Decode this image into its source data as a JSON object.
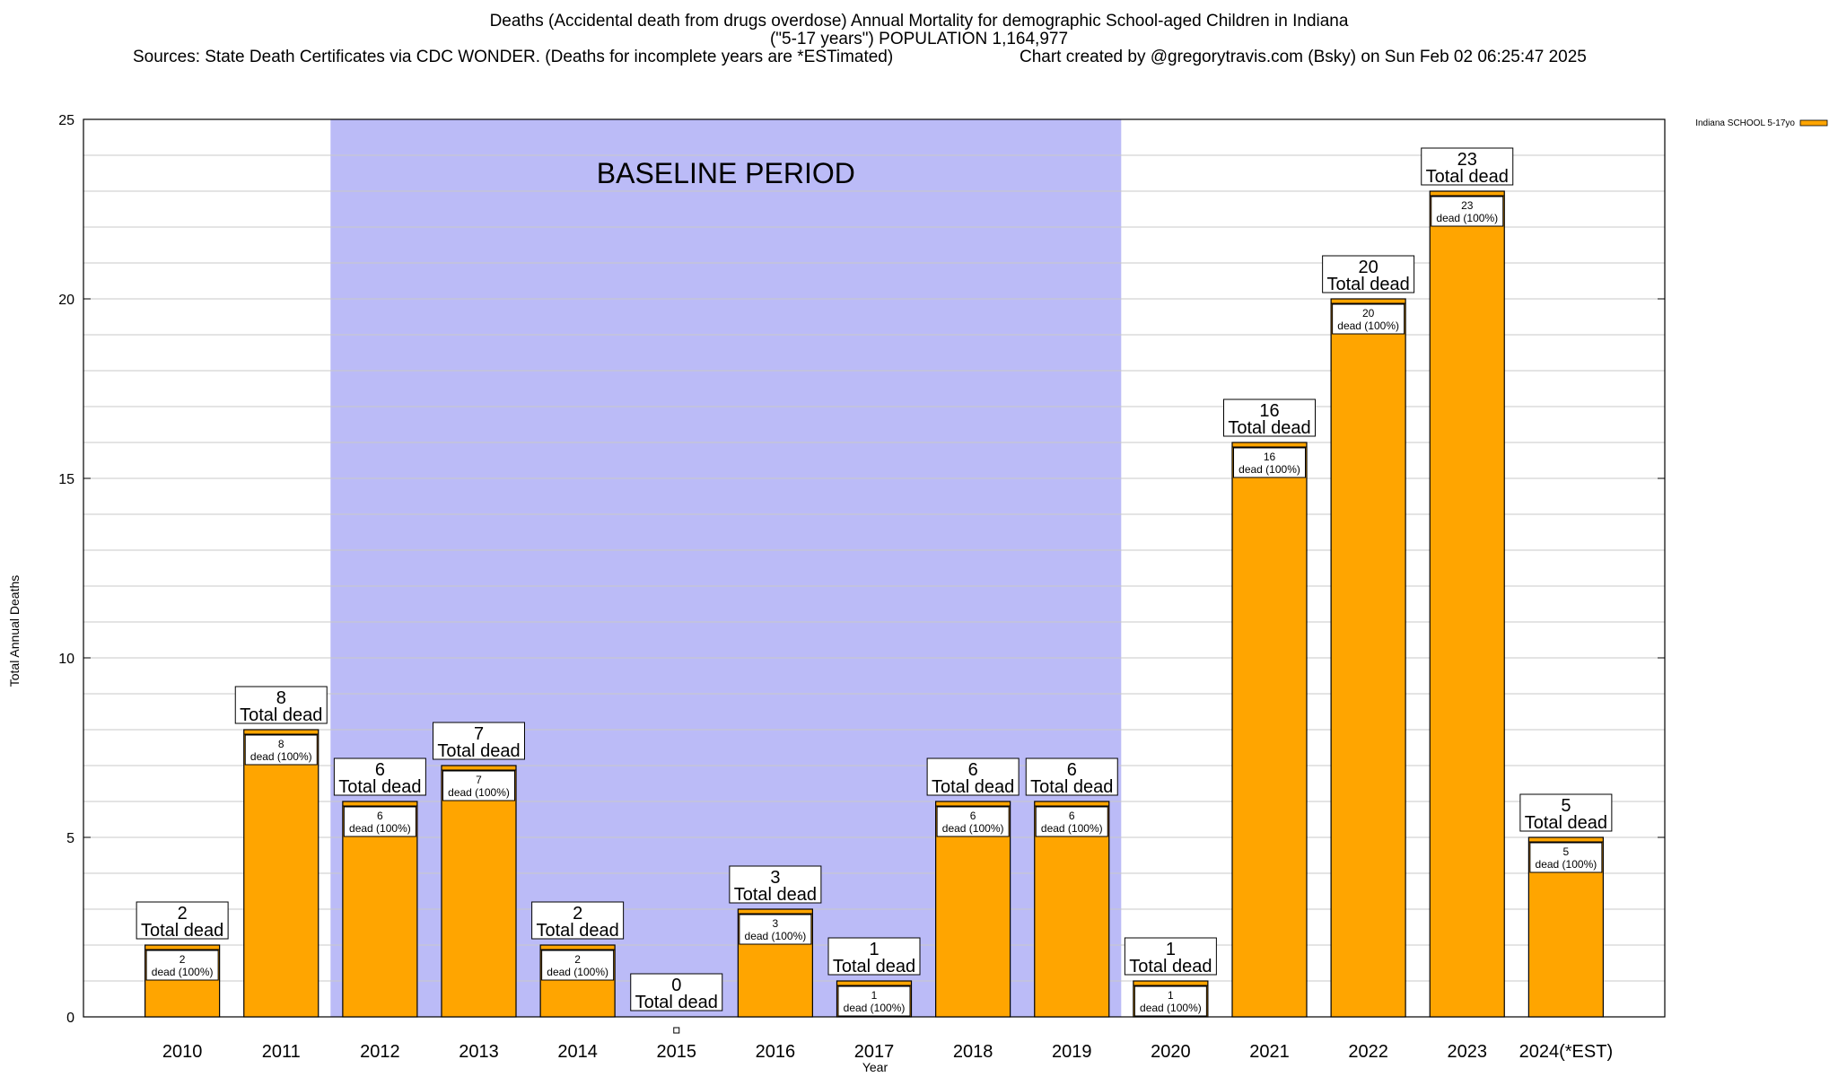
{
  "header": {
    "title_line1": "Deaths (Accidental death from drugs overdose) Annual Mortality for demographic School-aged Children in Indiana",
    "title_line2": "(\"5-17 years\") POPULATION 1,164,977",
    "sources": "Sources: State Death Certificates via CDC WONDER. (Deaths for incomplete years are *ESTimated)",
    "credit": "Chart created by @gregorytravis.com (Bsky) on Sun Feb 02 06:25:47 2025"
  },
  "chart_data": {
    "type": "bar",
    "title": "Deaths (Accidental death from drugs overdose) Annual Mortality for demographic School-aged Children in Indiana",
    "xlabel": "Year",
    "ylabel": "Total Annual Deaths",
    "ylim": [
      0,
      25
    ],
    "yticks": [
      0,
      5,
      10,
      15,
      20,
      25
    ],
    "grid": true,
    "legend": {
      "label": "Indiana SCHOOL 5-17yo",
      "placement": "top-right"
    },
    "categories": [
      "2010",
      "2011",
      "2012",
      "2013",
      "2014",
      "2015",
      "2016",
      "2017",
      "2018",
      "2019",
      "2020",
      "2021",
      "2022",
      "2023",
      "2024(*EST)"
    ],
    "series": [
      {
        "name": "Indiana SCHOOL 5-17yo",
        "color": "#ffa500",
        "values": [
          2,
          8,
          6,
          7,
          2,
          0,
          3,
          1,
          6,
          6,
          1,
          16,
          20,
          23,
          5
        ]
      }
    ],
    "total_label": "Total dead",
    "inner_label": "dead (100%)",
    "baseline": {
      "label": "BASELINE PERIOD",
      "from": "2012",
      "to": "2019",
      "color": "#bbbbf7"
    }
  }
}
